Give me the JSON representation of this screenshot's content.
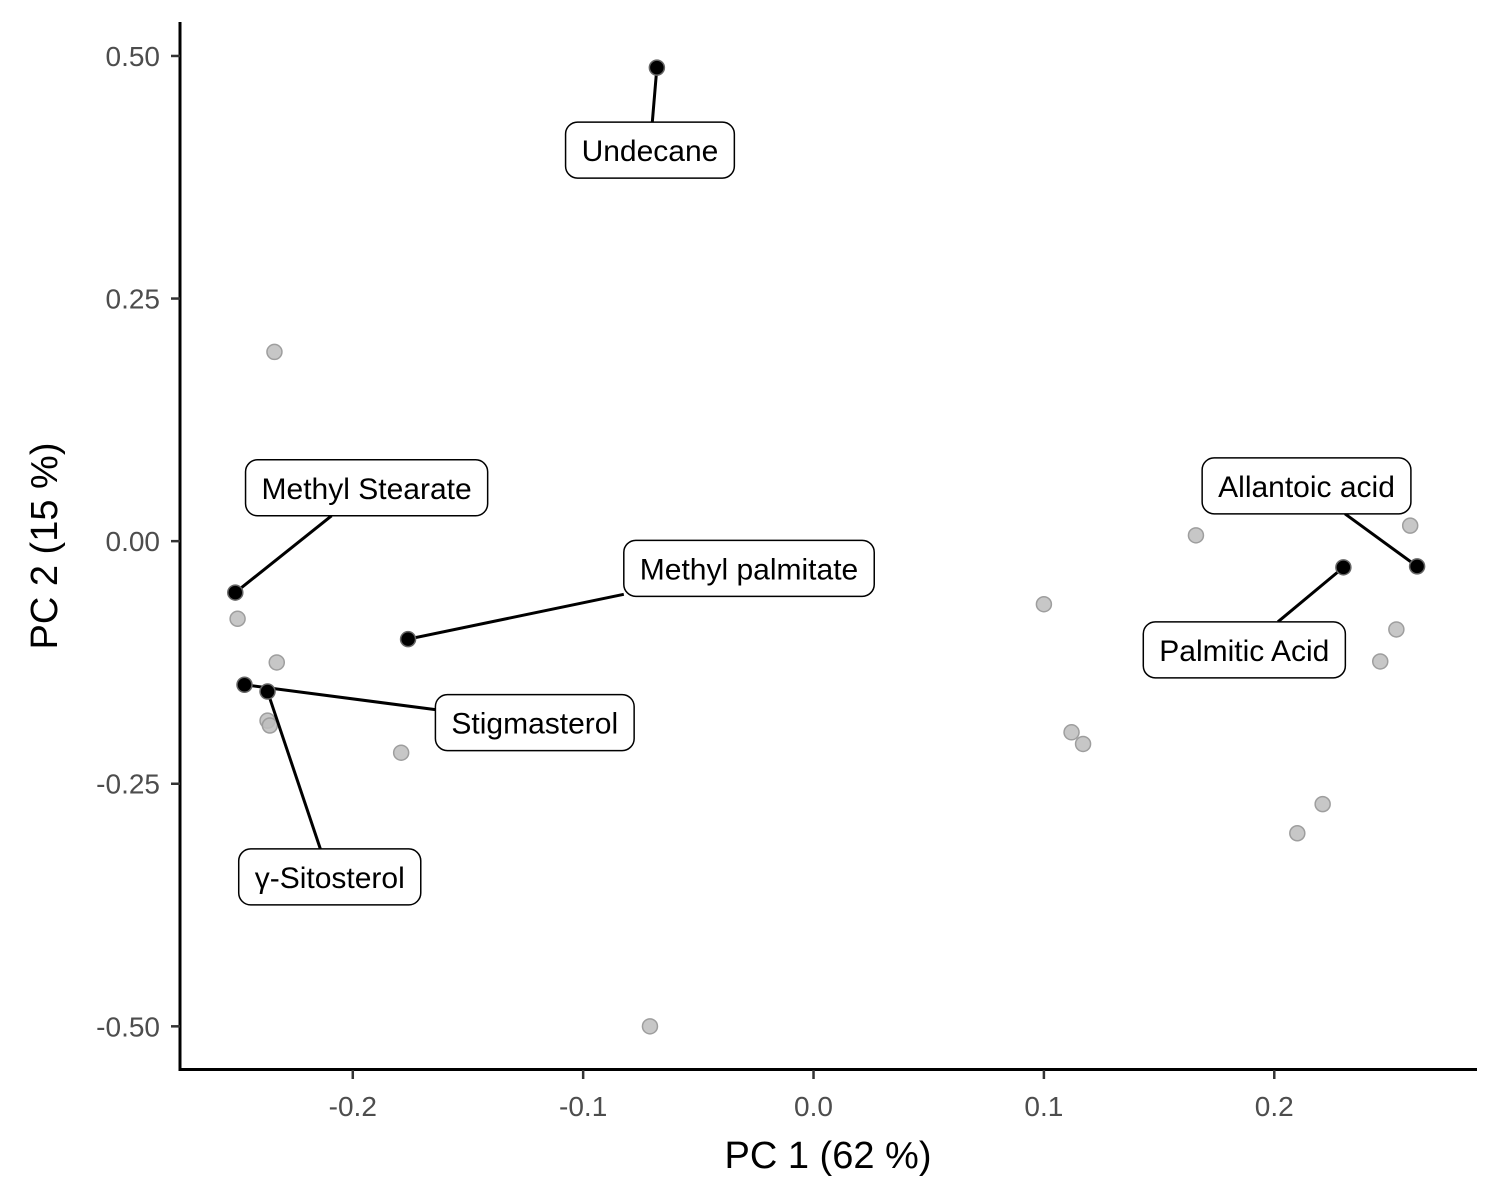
{
  "chart_data": {
    "type": "scatter",
    "title": "",
    "xlabel": "PC 1 (62 %)",
    "ylabel": "PC 2 (15 %)",
    "xlim": [
      -0.275,
      0.288
    ],
    "ylim": [
      -0.545,
      0.535
    ],
    "x_ticks": [
      -0.2,
      -0.1,
      0.0,
      0.1,
      0.2
    ],
    "x_tick_labels": [
      "-0.2",
      "-0.1",
      "0.0",
      "0.1",
      "0.2"
    ],
    "y_ticks": [
      0.5,
      0.25,
      0.0,
      -0.25,
      -0.5
    ],
    "y_tick_labels": [
      "0.50",
      "0.25",
      "0.00",
      "-0.25",
      "-0.50"
    ],
    "grid": false,
    "colors": {
      "highlight": "#000000",
      "background_point": "#bdbdbd",
      "background_point_edge": "#9e9e9e"
    },
    "labeled_points": [
      {
        "label": "Undecane",
        "x": -0.068,
        "y": 0.488,
        "label_x": -0.071,
        "label_y": 0.403
      },
      {
        "label": "Methyl Stearate",
        "x": -0.251,
        "y": -0.053,
        "label_x": -0.194,
        "label_y": 0.055
      },
      {
        "label": "Methyl palmitate",
        "x": -0.176,
        "y": -0.101,
        "label_x": -0.028,
        "label_y": -0.028
      },
      {
        "label": "Stigmasterol",
        "x": -0.247,
        "y": -0.148,
        "label_x": -0.121,
        "label_y": -0.187
      },
      {
        "label": "γ-Sitosterol",
        "x": -0.237,
        "y": -0.155,
        "label_x": -0.21,
        "label_y": -0.346
      },
      {
        "label": "Allantoic acid",
        "x": 0.262,
        "y": -0.026,
        "label_x": 0.214,
        "label_y": 0.057
      },
      {
        "label": "Palmitic Acid",
        "x": 0.23,
        "y": -0.027,
        "label_x": 0.187,
        "label_y": -0.112
      }
    ],
    "other_points": [
      {
        "x": -0.234,
        "y": 0.195
      },
      {
        "x": -0.25,
        "y": -0.08
      },
      {
        "x": -0.233,
        "y": -0.125
      },
      {
        "x": -0.237,
        "y": -0.185
      },
      {
        "x": -0.236,
        "y": -0.19
      },
      {
        "x": -0.179,
        "y": -0.218
      },
      {
        "x": -0.071,
        "y": -0.5
      },
      {
        "x": 0.1,
        "y": -0.065
      },
      {
        "x": 0.112,
        "y": -0.197
      },
      {
        "x": 0.117,
        "y": -0.209
      },
      {
        "x": 0.166,
        "y": 0.006
      },
      {
        "x": 0.259,
        "y": 0.016
      },
      {
        "x": 0.253,
        "y": -0.091
      },
      {
        "x": 0.246,
        "y": -0.124
      },
      {
        "x": 0.221,
        "y": -0.271
      },
      {
        "x": 0.21,
        "y": -0.301
      }
    ]
  }
}
